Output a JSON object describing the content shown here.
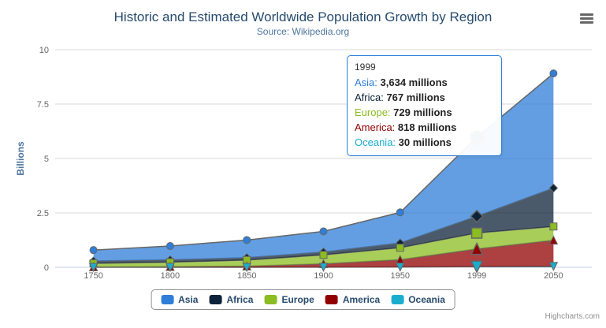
{
  "title": "Historic and Estimated Worldwide Population Growth by Region",
  "subtitle": "Source: Wikipedia.org",
  "credits": "Highcharts.com",
  "icons": {
    "context_menu": "hamburger-menu-icon"
  },
  "colors": {
    "title": "#274b6d",
    "subtitle": "#4d759e",
    "axis_labels": "#666666",
    "axis_title": "#4d759e",
    "gridline": "#d8d8d8",
    "x_axis_line": "#c0d0e0",
    "series_outline": "#666666",
    "tooltip_border": "#2f7ed8",
    "legend_border": "#909090"
  },
  "chart_data": {
    "type": "area",
    "stacking": "normal",
    "title": "Historic and Estimated Worldwide Population Growth by Region",
    "subtitle": "Source: Wikipedia.org",
    "categories": [
      "1750",
      "1800",
      "1850",
      "1900",
      "1950",
      "1999",
      "2050"
    ],
    "series": [
      {
        "name": "Asia",
        "color": "#2f7ed8",
        "marker": "circle",
        "unit": "millions",
        "values": [
          502,
          635,
          809,
          947,
          1402,
          3634,
          5268
        ]
      },
      {
        "name": "Africa",
        "color": "#0d233a",
        "marker": "diamond",
        "unit": "millions",
        "values": [
          106,
          107,
          111,
          133,
          221,
          767,
          1766
        ]
      },
      {
        "name": "Europe",
        "color": "#8bbc21",
        "marker": "square",
        "unit": "millions",
        "values": [
          163,
          203,
          276,
          408,
          547,
          729,
          628
        ]
      },
      {
        "name": "America",
        "color": "#910000",
        "marker": "triangle",
        "unit": "millions",
        "values": [
          18,
          31,
          54,
          156,
          339,
          818,
          1201
        ]
      },
      {
        "name": "Oceania",
        "color": "#1aadce",
        "marker": "triangle-down",
        "unit": "millions",
        "values": [
          2,
          2,
          2,
          6,
          13,
          30,
          46
        ]
      }
    ],
    "xlabel": "",
    "ylabel": "Billions",
    "ylim": [
      0,
      10
    ],
    "yticks": [
      0,
      2.5,
      5,
      7.5,
      10
    ],
    "grid": true,
    "legend_position": "bottom",
    "fill_opacity": 0.75,
    "hover_category_index": 5
  },
  "tooltip": {
    "header": "1999",
    "rows": [
      {
        "name": "Asia",
        "value": "3,634 millions"
      },
      {
        "name": "Africa",
        "value": "767 millions"
      },
      {
        "name": "Europe",
        "value": "729 millions"
      },
      {
        "name": "America",
        "value": "818 millions"
      },
      {
        "name": "Oceania",
        "value": "30 millions"
      }
    ]
  }
}
